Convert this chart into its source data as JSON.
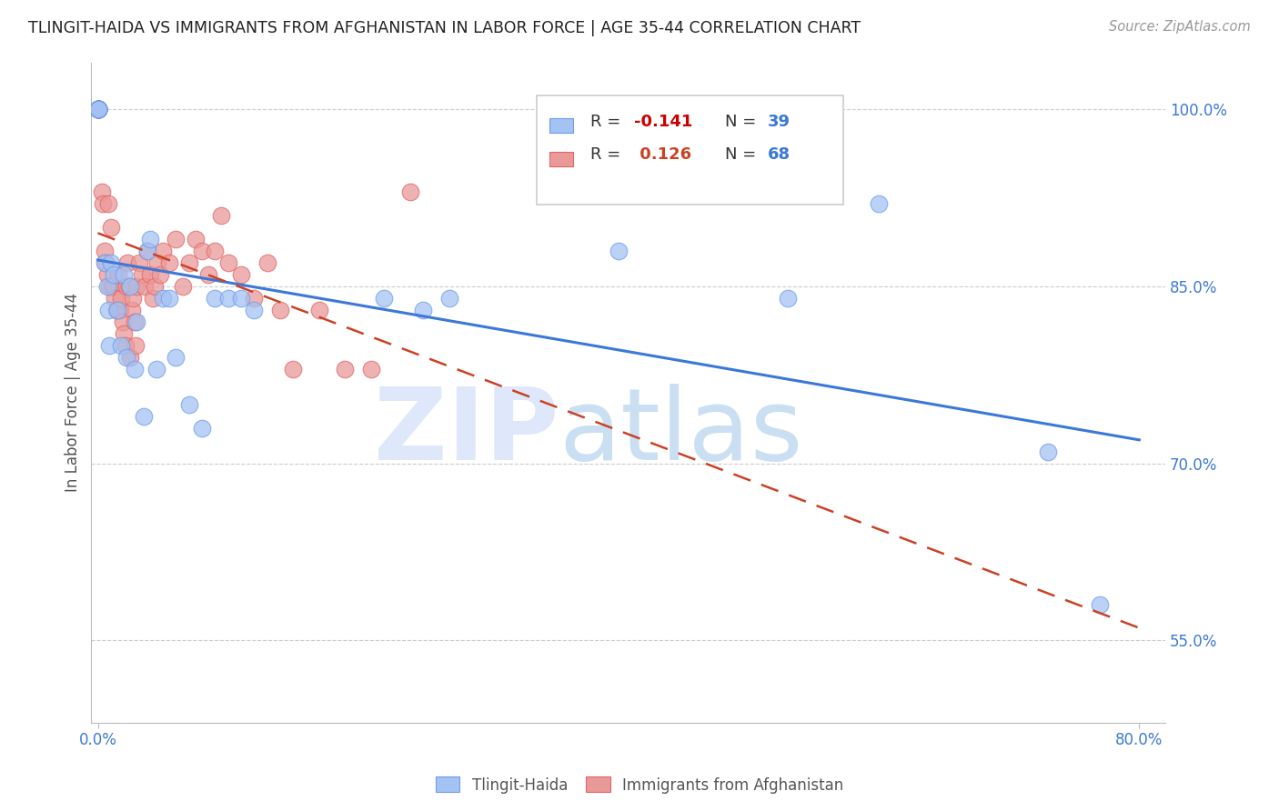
{
  "title": "TLINGIT-HAIDA VS IMMIGRANTS FROM AFGHANISTAN IN LABOR FORCE | AGE 35-44 CORRELATION CHART",
  "source": "Source: ZipAtlas.com",
  "ylabel": "In Labor Force | Age 35-44",
  "xlim": [
    -0.005,
    0.82
  ],
  "ylim": [
    0.48,
    1.04
  ],
  "y_ticks": [
    0.55,
    0.7,
    0.85,
    1.0
  ],
  "x_ticks": [
    0.0,
    0.8
  ],
  "y_tick_labels": [
    "55.0%",
    "70.0%",
    "85.0%",
    "100.0%"
  ],
  "x_tick_labels": [
    "0.0%",
    "80.0%"
  ],
  "blue_color": "#a4c2f4",
  "blue_edge_color": "#6d9eeb",
  "pink_color": "#ea9999",
  "pink_edge_color": "#e06666",
  "blue_line_color": "#3c78d8",
  "pink_line_color": "#cc4125",
  "tlingit_x": [
    0.0,
    0.0,
    0.0,
    0.0,
    0.0,
    0.0,
    0.0,
    0.005,
    0.007,
    0.008,
    0.009,
    0.01,
    0.012,
    0.015,
    0.018,
    0.02,
    0.022,
    0.025,
    0.028,
    0.03,
    0.035,
    0.038,
    0.04,
    0.045,
    0.05,
    0.055,
    0.06,
    0.07,
    0.08,
    0.09,
    0.1,
    0.11,
    0.12,
    0.22,
    0.25,
    0.27,
    0.4,
    0.53,
    0.6,
    0.73,
    0.77
  ],
  "tlingit_y": [
    1.0,
    1.0,
    1.0,
    1.0,
    1.0,
    1.0,
    1.0,
    0.87,
    0.85,
    0.83,
    0.8,
    0.87,
    0.86,
    0.83,
    0.8,
    0.86,
    0.79,
    0.85,
    0.78,
    0.82,
    0.74,
    0.88,
    0.89,
    0.78,
    0.84,
    0.84,
    0.79,
    0.75,
    0.73,
    0.84,
    0.84,
    0.84,
    0.83,
    0.84,
    0.83,
    0.84,
    0.88,
    0.84,
    0.92,
    0.71,
    0.58
  ],
  "afghan_x": [
    0.0,
    0.0,
    0.0,
    0.0,
    0.0,
    0.0,
    0.0,
    0.0,
    0.0,
    0.0,
    0.003,
    0.004,
    0.005,
    0.006,
    0.007,
    0.008,
    0.009,
    0.01,
    0.011,
    0.012,
    0.013,
    0.014,
    0.015,
    0.016,
    0.017,
    0.018,
    0.019,
    0.02,
    0.021,
    0.022,
    0.023,
    0.024,
    0.025,
    0.026,
    0.027,
    0.028,
    0.029,
    0.03,
    0.032,
    0.034,
    0.036,
    0.038,
    0.04,
    0.042,
    0.044,
    0.046,
    0.048,
    0.05,
    0.055,
    0.06,
    0.065,
    0.07,
    0.075,
    0.08,
    0.085,
    0.09,
    0.095,
    0.1,
    0.11,
    0.12,
    0.13,
    0.14,
    0.15,
    0.17,
    0.19,
    0.21,
    0.24
  ],
  "afghan_y": [
    1.0,
    1.0,
    1.0,
    1.0,
    1.0,
    1.0,
    1.0,
    1.0,
    1.0,
    1.0,
    0.93,
    0.92,
    0.88,
    0.87,
    0.86,
    0.92,
    0.85,
    0.9,
    0.85,
    0.85,
    0.84,
    0.83,
    0.83,
    0.86,
    0.83,
    0.84,
    0.82,
    0.81,
    0.8,
    0.85,
    0.87,
    0.85,
    0.79,
    0.83,
    0.84,
    0.82,
    0.8,
    0.85,
    0.87,
    0.86,
    0.85,
    0.88,
    0.86,
    0.84,
    0.85,
    0.87,
    0.86,
    0.88,
    0.87,
    0.89,
    0.85,
    0.87,
    0.89,
    0.88,
    0.86,
    0.88,
    0.91,
    0.87,
    0.86,
    0.84,
    0.87,
    0.83,
    0.78,
    0.83,
    0.78,
    0.78,
    0.93
  ]
}
